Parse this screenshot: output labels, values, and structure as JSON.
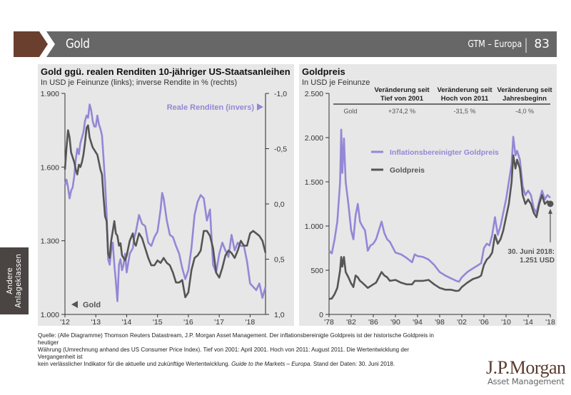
{
  "header": {
    "title": "Gold",
    "series_label": "GTM – Europa",
    "separator": "|",
    "page_number": "83",
    "brand_color": "#6a3f2e",
    "bar_color": "#676767"
  },
  "side_tab": {
    "label_line1": "Andere",
    "label_line2": "Anlageklassen"
  },
  "chart_data": [
    {
      "type": "line",
      "title": "Gold ggü. realen Renditen 10-jähriger US-Staatsanleihen",
      "subtitle": "In USD je Feinunze (links); inverse Rendite in % (rechts)",
      "x_tick_labels": [
        "'12",
        "'13",
        "'14",
        "'15",
        "'16",
        "'17",
        "'18"
      ],
      "x_range": [
        2012.0,
        2018.5
      ],
      "y_left": {
        "ticks": [
          "1.900",
          "1.600",
          "1.300",
          "1.000"
        ],
        "range": [
          1000,
          1900
        ]
      },
      "y_right": {
        "ticks": [
          "-1,0",
          "-0,5",
          "0,0",
          "0,5",
          "1,0"
        ],
        "range": [
          -1.0,
          1.0
        ],
        "inverted": true
      },
      "legend": [
        {
          "label": "Reale Renditen (invers)",
          "color": "#9487d6",
          "axis": "right",
          "marker": "right-triangle",
          "position": "top-right"
        },
        {
          "label": "Gold",
          "color": "#555555",
          "axis": "left",
          "marker": "left-triangle",
          "position": "bottom-left"
        }
      ],
      "series": [
        {
          "name": "Gold",
          "axis": "left",
          "color": "#555555",
          "x": [
            2012.0,
            2012.05,
            2012.1,
            2012.15,
            2012.2,
            2012.25,
            2012.3,
            2012.35,
            2012.4,
            2012.45,
            2012.5,
            2012.55,
            2012.6,
            2012.65,
            2012.7,
            2012.75,
            2012.8,
            2012.85,
            2012.9,
            2012.95,
            2013.0,
            2013.05,
            2013.1,
            2013.15,
            2013.2,
            2013.25,
            2013.3,
            2013.35,
            2013.4,
            2013.45,
            2013.5,
            2013.55,
            2013.6,
            2013.65,
            2013.7,
            2013.75,
            2013.8,
            2013.85,
            2013.9,
            2013.95,
            2014.0,
            2014.1,
            2014.2,
            2014.25,
            2014.3,
            2014.4,
            2014.5,
            2014.6,
            2014.7,
            2014.8,
            2014.9,
            2015.0,
            2015.1,
            2015.2,
            2015.3,
            2015.4,
            2015.5,
            2015.6,
            2015.7,
            2015.8,
            2015.9,
            2016.0,
            2016.1,
            2016.2,
            2016.3,
            2016.4,
            2016.5,
            2016.6,
            2016.7,
            2016.8,
            2016.9,
            2017.0,
            2017.1,
            2017.2,
            2017.3,
            2017.4,
            2017.5,
            2017.6,
            2017.7,
            2017.8,
            2017.9,
            2018.0,
            2018.1,
            2018.2,
            2018.3,
            2018.4,
            2018.5
          ],
          "values": [
            1590,
            1680,
            1750,
            1720,
            1660,
            1640,
            1620,
            1590,
            1570,
            1610,
            1600,
            1620,
            1650,
            1700,
            1760,
            1770,
            1720,
            1700,
            1680,
            1670,
            1660,
            1650,
            1620,
            1590,
            1570,
            1480,
            1400,
            1380,
            1250,
            1230,
            1300,
            1340,
            1380,
            1330,
            1320,
            1280,
            1290,
            1240,
            1230,
            1220,
            1240,
            1300,
            1330,
            1290,
            1280,
            1330,
            1310,
            1270,
            1230,
            1200,
            1200,
            1220,
            1210,
            1230,
            1210,
            1200,
            1170,
            1130,
            1130,
            1140,
            1070,
            1090,
            1180,
            1230,
            1240,
            1260,
            1340,
            1340,
            1320,
            1270,
            1170,
            1150,
            1190,
            1240,
            1260,
            1250,
            1230,
            1260,
            1300,
            1280,
            1280,
            1330,
            1340,
            1330,
            1320,
            1300,
            1251
          ]
        },
        {
          "name": "Reale Renditen (invers)",
          "axis": "right",
          "color": "#9487d6",
          "x": [
            2012.0,
            2012.05,
            2012.1,
            2012.15,
            2012.2,
            2012.25,
            2012.3,
            2012.35,
            2012.4,
            2012.45,
            2012.5,
            2012.55,
            2012.6,
            2012.65,
            2012.7,
            2012.75,
            2012.8,
            2012.85,
            2012.9,
            2012.95,
            2013.0,
            2013.05,
            2013.1,
            2013.15,
            2013.2,
            2013.25,
            2013.3,
            2013.35,
            2013.4,
            2013.45,
            2013.5,
            2013.55,
            2013.6,
            2013.65,
            2013.7,
            2013.75,
            2013.8,
            2013.85,
            2013.9,
            2013.95,
            2014.0,
            2014.1,
            2014.2,
            2014.25,
            2014.3,
            2014.4,
            2014.5,
            2014.6,
            2014.7,
            2014.8,
            2014.9,
            2015.0,
            2015.1,
            2015.15,
            2015.2,
            2015.3,
            2015.4,
            2015.5,
            2015.6,
            2015.7,
            2015.8,
            2015.9,
            2016.0,
            2016.1,
            2016.2,
            2016.3,
            2016.4,
            2016.5,
            2016.6,
            2016.7,
            2016.8,
            2016.9,
            2017.0,
            2017.1,
            2017.2,
            2017.3,
            2017.4,
            2017.5,
            2017.6,
            2017.7,
            2017.8,
            2017.9,
            2018.0,
            2018.1,
            2018.2,
            2018.3,
            2018.4,
            2018.5
          ],
          "values": [
            -0.17,
            -0.22,
            -0.15,
            -0.05,
            -0.12,
            -0.15,
            -0.25,
            -0.4,
            -0.5,
            -0.45,
            -0.55,
            -0.6,
            -0.65,
            -0.75,
            -0.8,
            -0.78,
            -0.9,
            -0.85,
            -0.75,
            -0.7,
            -0.7,
            -0.8,
            -0.72,
            -0.68,
            -0.62,
            -0.42,
            -0.2,
            0.1,
            0.5,
            0.55,
            0.42,
            0.35,
            0.55,
            0.7,
            0.88,
            0.55,
            0.5,
            0.6,
            0.55,
            0.45,
            0.62,
            0.45,
            0.4,
            0.3,
            0.25,
            0.1,
            0.18,
            0.2,
            0.35,
            0.38,
            0.3,
            0.25,
            0.05,
            -0.1,
            -0.05,
            0.15,
            0.28,
            0.3,
            0.38,
            0.45,
            0.58,
            0.68,
            0.6,
            0.4,
            0.1,
            -0.02,
            -0.08,
            -0.05,
            0.15,
            0.05,
            0.55,
            0.62,
            0.45,
            0.35,
            0.42,
            0.48,
            0.28,
            0.42,
            0.35,
            0.38,
            0.38,
            0.52,
            0.72,
            0.75,
            0.78,
            0.72,
            0.85,
            0.75
          ]
        }
      ]
    },
    {
      "type": "line",
      "title": "Goldpreis",
      "subtitle": "In USD je Feinunze",
      "x_tick_labels": [
        "'78",
        "'82",
        "'86",
        "'90",
        "'94",
        "'98",
        "'02",
        "'06",
        "'10",
        "'14",
        "'18"
      ],
      "x_range": [
        1978,
        2018
      ],
      "y_left": {
        "ticks": [
          "2.500",
          "2.000",
          "1.500",
          "1.000",
          "500",
          "0"
        ],
        "range": [
          0,
          2500
        ]
      },
      "legend": [
        {
          "label": "Inflationsbereinigter Goldpreis",
          "color": "#9487d6",
          "position": "top-left"
        },
        {
          "label": "Goldpreis",
          "color": "#555555",
          "position": "top-left"
        }
      ],
      "annotation": {
        "line1": "30. Juni 2018:",
        "line2": "1.251 USD",
        "value": 1251
      },
      "table": {
        "headers": [
          "",
          [
            "Veränderung seit",
            "Tief von 2001"
          ],
          [
            "Veränderung seit",
            "Hoch von 2011"
          ],
          [
            "Veränderung seit",
            "Jahresbeginn"
          ]
        ],
        "rows": [
          {
            "label": "Gold",
            "values": [
              "+374,2 %",
              "-31,5 %",
              "-4,0 %"
            ]
          }
        ]
      },
      "series": [
        {
          "name": "Inflationsbereinigter Goldpreis",
          "color": "#9487d6",
          "x": [
            1978,
            1978.5,
            1979,
            1979.5,
            1980,
            1980.2,
            1980.4,
            1980.7,
            1981,
            1981.5,
            1982,
            1982.4,
            1982.8,
            1983.2,
            1983.6,
            1984,
            1984.5,
            1985,
            1985.5,
            1986,
            1986.5,
            1987,
            1987.5,
            1988,
            1988.5,
            1989,
            1990,
            1991,
            1992,
            1993,
            1993.5,
            1994,
            1995,
            1996,
            1997,
            1998,
            1999,
            2000,
            2001,
            2001.5,
            2002,
            2003,
            2004,
            2005,
            2005.5,
            2006,
            2006.5,
            2007,
            2007.5,
            2008,
            2008.5,
            2009,
            2009.5,
            2010,
            2010.5,
            2011,
            2011.3,
            2011.7,
            2012,
            2012.5,
            2013,
            2013.5,
            2014,
            2014.5,
            2015,
            2015.5,
            2016,
            2016.5,
            2017,
            2017.5,
            2018
          ],
          "values": [
            720,
            690,
            850,
            1050,
            1500,
            2090,
            1600,
            1990,
            1500,
            1250,
            950,
            850,
            1120,
            1250,
            1050,
            1000,
            950,
            720,
            780,
            800,
            850,
            950,
            1050,
            920,
            850,
            820,
            700,
            680,
            640,
            590,
            680,
            660,
            650,
            620,
            560,
            480,
            440,
            410,
            380,
            370,
            420,
            480,
            520,
            560,
            580,
            750,
            800,
            780,
            900,
            1100,
            900,
            1000,
            1150,
            1300,
            1500,
            1700,
            2010,
            1800,
            1850,
            1750,
            1450,
            1350,
            1400,
            1350,
            1200,
            1150,
            1280,
            1400,
            1300,
            1350,
            1320
          ]
        },
        {
          "name": "Goldpreis",
          "color": "#555555",
          "x": [
            1978,
            1978.5,
            1979,
            1979.5,
            1980,
            1980.2,
            1980.4,
            1980.7,
            1981,
            1981.5,
            1982,
            1982.4,
            1982.8,
            1983.2,
            1983.6,
            1984,
            1984.5,
            1985,
            1985.5,
            1986,
            1986.5,
            1987,
            1987.5,
            1988,
            1988.5,
            1989,
            1990,
            1991,
            1992,
            1993,
            1993.5,
            1994,
            1995,
            1996,
            1997,
            1998,
            1999,
            2000,
            2001,
            2001.5,
            2002,
            2003,
            2004,
            2005,
            2005.5,
            2006,
            2006.5,
            2007,
            2007.5,
            2008,
            2008.5,
            2009,
            2009.5,
            2010,
            2010.5,
            2011,
            2011.3,
            2011.7,
            2012,
            2012.5,
            2013,
            2013.5,
            2014,
            2014.5,
            2015,
            2015.5,
            2016,
            2016.5,
            2017,
            2017.5,
            2018
          ],
          "values": [
            175,
            180,
            230,
            300,
            500,
            650,
            540,
            650,
            480,
            420,
            350,
            310,
            440,
            420,
            380,
            360,
            330,
            300,
            320,
            340,
            360,
            420,
            480,
            440,
            420,
            380,
            390,
            360,
            340,
            340,
            380,
            380,
            380,
            390,
            340,
            300,
            280,
            280,
            265,
            270,
            310,
            360,
            400,
            420,
            440,
            560,
            620,
            650,
            700,
            900,
            800,
            850,
            950,
            1100,
            1250,
            1500,
            1800,
            1650,
            1750,
            1650,
            1350,
            1250,
            1300,
            1250,
            1150,
            1100,
            1250,
            1350,
            1250,
            1280,
            1251
          ]
        }
      ]
    }
  ],
  "footnote": {
    "line1_a": "Quelle: (Alle Diagramme) Thomson Reuters Datastream, J.P. Morgan Asset Management. Der inflationsbereinigte Goldpreis ist der historische Goldpreis in heutiger",
    "line2": "Währung (Umrechnung anhand des US Consumer Price Index). Tief von 2001: April 2001. Hoch von 2011: August 2011. Die Wertentwicklung der Vergangenheit ist",
    "line3_a": "kein verlässlicher Indikator für die aktuelle und zukünftige Wertentwicklung. ",
    "line3_italic": "Guide to the Markets – Europa",
    "line3_b": ". Stand der Daten: 30. Juni 2018."
  },
  "logo": {
    "name": "J.P.Morgan",
    "tagline": "Asset Management"
  },
  "corner_mark": "·"
}
